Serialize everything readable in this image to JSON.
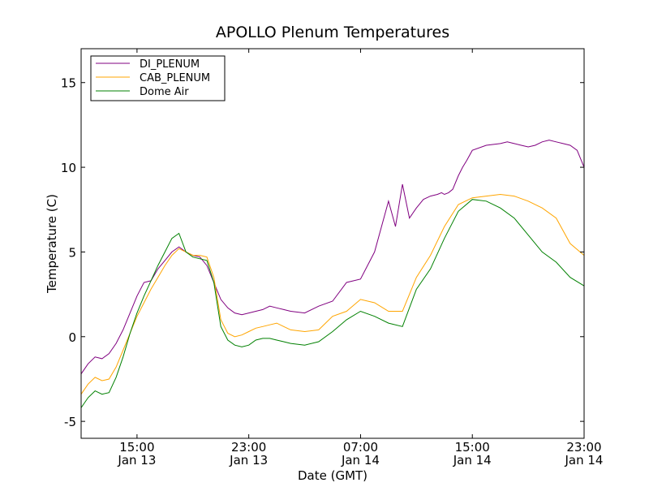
{
  "chart_data": {
    "type": "line",
    "title": "APOLLO Plenum Temperatures",
    "xlabel": "Date (GMT)",
    "ylabel": "Temperature (C)",
    "x_unit": "hours since 2013-01-13 11:00 GMT",
    "xlim": [
      0,
      36
    ],
    "ylim": [
      -6,
      17
    ],
    "yticks": [
      -5,
      0,
      5,
      10,
      15
    ],
    "xticks": [
      {
        "x": 4,
        "line1": "15:00",
        "line2": "Jan 13"
      },
      {
        "x": 12,
        "line1": "23:00",
        "line2": "Jan 13"
      },
      {
        "x": 20,
        "line1": "07:00",
        "line2": "Jan 14"
      },
      {
        "x": 28,
        "line1": "15:00",
        "line2": "Jan 14"
      },
      {
        "x": 36,
        "line1": "23:00",
        "line2": "Jan 14"
      }
    ],
    "legend_position": "top-left",
    "series": [
      {
        "name": "DI_PLENUM",
        "color": "#800080",
        "x": [
          0,
          0.5,
          1,
          1.5,
          2,
          2.5,
          3,
          3.5,
          4,
          4.5,
          5,
          5.5,
          6,
          6.5,
          7,
          7.5,
          8,
          8.5,
          9,
          9.5,
          10,
          10.5,
          11,
          11.5,
          12,
          12.5,
          13,
          13.5,
          14,
          14.5,
          15,
          16,
          17,
          18,
          19,
          20,
          21,
          22,
          22.5,
          23,
          23.5,
          24,
          24.5,
          25,
          25.5,
          25.8,
          26,
          26.3,
          26.6,
          27,
          27.3,
          27.6,
          28,
          29,
          30,
          30.5,
          31,
          31.5,
          32,
          32.5,
          33,
          33.5,
          34,
          34.5,
          35,
          35.5,
          36
        ],
        "y": [
          -2.2,
          -1.6,
          -1.2,
          -1.3,
          -1.0,
          -0.4,
          0.4,
          1.4,
          2.4,
          3.2,
          3.3,
          4.0,
          4.5,
          5.0,
          5.3,
          5.0,
          4.8,
          4.7,
          4.2,
          3.2,
          2.2,
          1.7,
          1.4,
          1.3,
          1.4,
          1.5,
          1.6,
          1.8,
          1.7,
          1.6,
          1.5,
          1.4,
          1.8,
          2.1,
          3.2,
          3.4,
          5.0,
          8.0,
          6.5,
          9.0,
          7.0,
          7.6,
          8.1,
          8.3,
          8.4,
          8.5,
          8.4,
          8.5,
          8.7,
          9.5,
          10.0,
          10.4,
          11.0,
          11.3,
          11.4,
          11.5,
          11.4,
          11.3,
          11.2,
          11.3,
          11.5,
          11.6,
          11.5,
          11.4,
          11.3,
          11.0,
          10.0
        ]
      },
      {
        "name": "CAB_PLENUM",
        "color": "#ffa500",
        "x": [
          0,
          0.5,
          1,
          1.5,
          2,
          2.5,
          3,
          3.5,
          4,
          4.5,
          5,
          5.5,
          6,
          6.5,
          7,
          7.5,
          8,
          8.5,
          9,
          9.5,
          10,
          10.5,
          11,
          11.5,
          12,
          12.5,
          13,
          13.5,
          14,
          14.5,
          15,
          16,
          17,
          18,
          19,
          20,
          21,
          22,
          23,
          24,
          25,
          26,
          27,
          28,
          29,
          30,
          31,
          32,
          33,
          34,
          35,
          36
        ],
        "y": [
          -3.4,
          -2.8,
          -2.4,
          -2.6,
          -2.5,
          -1.8,
          -0.8,
          0.2,
          1.2,
          2.0,
          2.8,
          3.5,
          4.2,
          4.8,
          5.2,
          5.0,
          4.8,
          4.8,
          4.7,
          3.5,
          1.0,
          0.2,
          0.0,
          0.1,
          0.3,
          0.5,
          0.6,
          0.7,
          0.8,
          0.6,
          0.4,
          0.3,
          0.4,
          1.2,
          1.5,
          2.2,
          2.0,
          1.5,
          1.5,
          3.5,
          4.8,
          6.5,
          7.8,
          8.2,
          8.3,
          8.4,
          8.3,
          8.0,
          7.6,
          7.0,
          5.5,
          4.8
        ]
      },
      {
        "name": "Dome Air",
        "color": "#008000",
        "x": [
          0,
          0.5,
          1,
          1.5,
          2,
          2.5,
          3,
          3.5,
          4,
          4.5,
          5,
          5.5,
          6,
          6.5,
          7,
          7.5,
          8,
          8.5,
          9,
          9.5,
          10,
          10.5,
          11,
          11.5,
          12,
          12.5,
          13,
          13.5,
          14,
          14.5,
          15,
          16,
          17,
          18,
          19,
          20,
          21,
          22,
          23,
          24,
          25,
          26,
          27,
          28,
          29,
          30,
          31,
          32,
          33,
          34,
          35,
          36
        ],
        "y": [
          -4.2,
          -3.6,
          -3.2,
          -3.4,
          -3.3,
          -2.4,
          -1.2,
          0.2,
          1.4,
          2.4,
          3.3,
          4.2,
          5.0,
          5.8,
          6.1,
          5.0,
          4.7,
          4.6,
          4.5,
          3.2,
          0.6,
          -0.2,
          -0.5,
          -0.6,
          -0.5,
          -0.2,
          -0.1,
          -0.1,
          -0.2,
          -0.3,
          -0.4,
          -0.5,
          -0.3,
          0.3,
          1.0,
          1.5,
          1.2,
          0.8,
          0.6,
          2.8,
          4.0,
          5.8,
          7.4,
          8.1,
          8.0,
          7.6,
          7.0,
          6.0,
          5.0,
          4.4,
          3.5,
          3.0
        ]
      }
    ]
  }
}
